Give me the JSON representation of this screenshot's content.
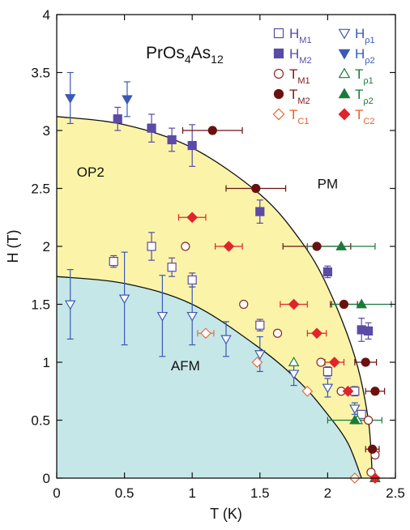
{
  "chart_data": {
    "type": "scatter",
    "title_main": "PrOs",
    "title_sub1": "4",
    "title_mid": "As",
    "title_sub2": "12",
    "xlabel": "T (K)",
    "ylabel": "H (T)",
    "xlim": [
      0,
      2.5
    ],
    "ylim": [
      0,
      4
    ],
    "xticks": [
      "0",
      "0.5",
      "1",
      "1.5",
      "2",
      "2.5"
    ],
    "yticks": [
      "0",
      "0.5",
      "1",
      "1.5",
      "2",
      "2.5",
      "3",
      "3.5",
      "4"
    ],
    "grid": false,
    "legend_position": "top-right",
    "regions": [
      {
        "label": "OP2",
        "color": "#fbf4a8",
        "x": 0.25,
        "y": 2.6
      },
      {
        "label": "PM",
        "color": "#ffffff",
        "x": 2.0,
        "y": 2.5
      },
      {
        "label": "AFM",
        "color": "#c6e7e7",
        "x": 0.95,
        "y": 0.93
      }
    ],
    "boundaries": [
      {
        "name": "upper",
        "x": [
          0,
          0.5,
          1.0,
          1.5,
          1.8,
          2.0,
          2.2,
          2.3,
          2.33
        ],
        "y": [
          3.12,
          3.05,
          2.85,
          2.45,
          2.05,
          1.65,
          1.05,
          0.5,
          0
        ]
      },
      {
        "name": "lower",
        "x": [
          0,
          0.5,
          1.0,
          1.5,
          1.8,
          2.0,
          2.15,
          2.25
        ],
        "y": [
          1.74,
          1.68,
          1.5,
          1.12,
          0.82,
          0.55,
          0.3,
          0
        ]
      }
    ],
    "series": [
      {
        "name": "H",
        "sub": "M1",
        "marker": "square",
        "fill": "open",
        "color": "#5b4aa6",
        "points": [
          [
            0.42,
            1.87,
            0,
            0.05
          ],
          [
            0.7,
            2.0,
            0,
            0.12
          ],
          [
            0.85,
            1.82,
            0,
            0.08
          ],
          [
            1.0,
            1.71,
            0,
            0.06
          ],
          [
            1.5,
            1.32,
            0,
            0.05
          ],
          [
            2.0,
            0.92,
            0,
            0.04
          ],
          [
            2.2,
            0.75,
            0,
            0.04
          ],
          [
            2.25,
            0.55,
            0,
            0.03
          ]
        ]
      },
      {
        "name": "H",
        "sub": "M2",
        "marker": "square",
        "fill": "filled",
        "color": "#5b4aa6",
        "points": [
          [
            0.45,
            3.1,
            0,
            0.1
          ],
          [
            0.7,
            3.02,
            0,
            0.12
          ],
          [
            0.85,
            2.92,
            0,
            0.1
          ],
          [
            1.0,
            2.87,
            0,
            0.18
          ],
          [
            1.5,
            2.3,
            0,
            0.1
          ],
          [
            2.0,
            1.78,
            0,
            0.05
          ],
          [
            2.25,
            1.28,
            0,
            0.1
          ],
          [
            2.3,
            1.27,
            0,
            0.07
          ]
        ]
      },
      {
        "name": "T",
        "sub": "M1",
        "marker": "circle",
        "fill": "open",
        "color": "#8c2a20",
        "points": [
          [
            0.95,
            2.0,
            0,
            0
          ],
          [
            1.38,
            1.5,
            0,
            0
          ],
          [
            1.63,
            1.25,
            0,
            0
          ],
          [
            1.95,
            1.0,
            0,
            0
          ],
          [
            2.1,
            0.75,
            0,
            0
          ],
          [
            2.3,
            0.5,
            0,
            0
          ],
          [
            2.35,
            0.2,
            0,
            0
          ],
          [
            2.32,
            0.05,
            0,
            0
          ]
        ]
      },
      {
        "name": "T",
        "sub": "M2",
        "marker": "circle",
        "fill": "filled",
        "color": "#6b1010",
        "points": [
          [
            1.15,
            3.0,
            0.22,
            0
          ],
          [
            1.47,
            2.5,
            0.22,
            0
          ],
          [
            1.92,
            2.0,
            0.25,
            0
          ],
          [
            2.12,
            1.5,
            0.1,
            0
          ],
          [
            2.28,
            1.0,
            0.08,
            0
          ],
          [
            2.35,
            0.75,
            0.07,
            0
          ],
          [
            2.33,
            0.25,
            0.05,
            0
          ]
        ]
      },
      {
        "name": "T",
        "sub": "ρ1",
        "marker": "triangle-up",
        "fill": "open",
        "color": "#1b7a3a",
        "points": [
          [
            1.75,
            1.0,
            0,
            0
          ],
          [
            2.22,
            0.5,
            0,
            0
          ],
          [
            2.35,
            0.0,
            0,
            0
          ]
        ]
      },
      {
        "name": "T",
        "sub": "ρ2",
        "marker": "triangle-up",
        "fill": "filled",
        "color": "#1b7a3a",
        "points": [
          [
            2.1,
            2.0,
            0.25,
            0
          ],
          [
            2.25,
            1.5,
            0.22,
            0
          ],
          [
            2.2,
            0.5,
            0.2,
            0
          ],
          [
            2.35,
            0.0,
            0,
            0
          ]
        ]
      },
      {
        "name": "H",
        "sub": "ρ1",
        "marker": "triangle-down",
        "fill": "open",
        "color": "#3a5ab8",
        "points": [
          [
            0.1,
            1.5,
            0,
            0.3
          ],
          [
            0.5,
            1.55,
            0,
            0.4
          ],
          [
            0.78,
            1.4,
            0,
            0.35
          ],
          [
            1.0,
            1.4,
            0,
            0.25
          ],
          [
            1.25,
            1.2,
            0,
            0.15
          ],
          [
            1.5,
            1.07,
            0,
            0.15
          ],
          [
            1.75,
            0.9,
            0,
            0.1
          ],
          [
            2.0,
            0.78,
            0,
            0.08
          ],
          [
            2.2,
            0.6,
            0,
            0.05
          ]
        ]
      },
      {
        "name": "H",
        "sub": "ρ2",
        "marker": "triangle-down",
        "fill": "filled",
        "color": "#3a5ab8",
        "points": [
          [
            0.1,
            3.28,
            0,
            0.22
          ],
          [
            0.52,
            3.27,
            0,
            0.15
          ]
        ]
      },
      {
        "name": "T",
        "sub": "C1",
        "marker": "diamond",
        "fill": "open",
        "color": "#e86a3a",
        "points": [
          [
            1.1,
            1.25,
            0.06,
            0
          ],
          [
            1.48,
            1.0,
            0,
            0
          ],
          [
            1.85,
            0.75,
            0,
            0
          ],
          [
            2.2,
            0.0,
            0,
            0
          ]
        ]
      },
      {
        "name": "T",
        "sub": "C2",
        "marker": "diamond",
        "fill": "filled",
        "color": "#e0242a",
        "points": [
          [
            1.0,
            2.25,
            0.1,
            0
          ],
          [
            1.27,
            2.0,
            0.1,
            0
          ],
          [
            1.75,
            1.5,
            0.1,
            0
          ],
          [
            1.92,
            1.25,
            0.07,
            0
          ],
          [
            2.05,
            1.0,
            0.07,
            0
          ],
          [
            2.15,
            0.75,
            0.05,
            0
          ],
          [
            2.35,
            0.0,
            0,
            0
          ]
        ]
      }
    ],
    "legend": [
      {
        "name": "H",
        "sub": "M1",
        "marker": "square",
        "fill": "open",
        "color": "#5b4aa6",
        "text_color": "#5b4aa6"
      },
      {
        "name": "H",
        "sub": "ρ1",
        "marker": "triangle-down",
        "fill": "open",
        "color": "#3a5ab8",
        "text_color": "#3a5ab8"
      },
      {
        "name": "H",
        "sub": "M2",
        "marker": "square",
        "fill": "filled",
        "color": "#5b4aa6",
        "text_color": "#5b4aa6"
      },
      {
        "name": "H",
        "sub": "ρ2",
        "marker": "triangle-down",
        "fill": "filled",
        "color": "#3a5ab8",
        "text_color": "#3a5ab8"
      },
      {
        "name": "T",
        "sub": "M1",
        "marker": "circle",
        "fill": "open",
        "color": "#8c2a20",
        "text_color": "#7a1a1a"
      },
      {
        "name": "T",
        "sub": "ρ1",
        "marker": "triangle-up",
        "fill": "open",
        "color": "#1b7a3a",
        "text_color": "#1b7a3a"
      },
      {
        "name": "T",
        "sub": "M2",
        "marker": "circle",
        "fill": "filled",
        "color": "#6b1010",
        "text_color": "#7a1a1a"
      },
      {
        "name": "T",
        "sub": "ρ2",
        "marker": "triangle-up",
        "fill": "filled",
        "color": "#1b7a3a",
        "text_color": "#1b7a3a"
      },
      {
        "name": "T",
        "sub": "C1",
        "marker": "diamond",
        "fill": "open",
        "color": "#e86a3a",
        "text_color": "#e8602a"
      },
      {
        "name": "T",
        "sub": "C2",
        "marker": "diamond",
        "fill": "filled",
        "color": "#e0242a",
        "text_color": "#e8602a"
      }
    ]
  }
}
